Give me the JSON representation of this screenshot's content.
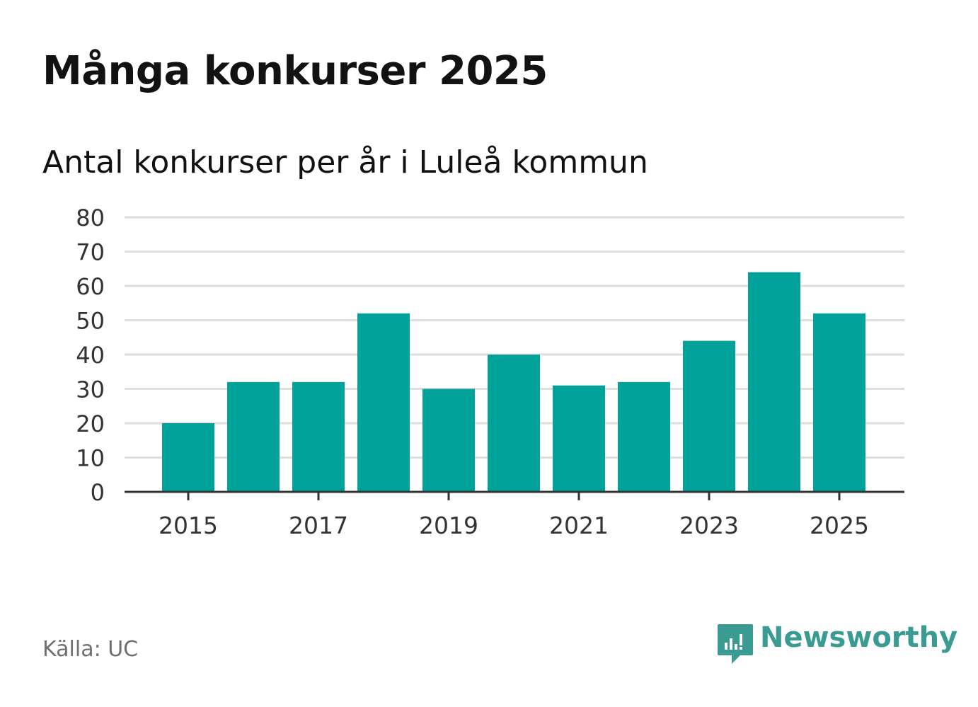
{
  "colors": {
    "bar": "#00a29a",
    "grid": "#dedede",
    "axis": "#333333",
    "brand": "#3a9b92"
  },
  "chart_data": {
    "type": "bar",
    "title": "Många konkurser 2025",
    "subtitle": "Antal konkurser per år i Luleå kommun",
    "categories": [
      "2015",
      "2016",
      "2017",
      "2018",
      "2019",
      "2020",
      "2021",
      "2022",
      "2023",
      "2024",
      "2025"
    ],
    "series": [
      {
        "name": "Antal konkurser",
        "values": [
          20,
          32,
          32,
          52,
          30,
          40,
          31,
          32,
          44,
          64,
          52
        ]
      }
    ],
    "x_tick_labels": [
      "2015",
      "2017",
      "2019",
      "2021",
      "2023",
      "2025"
    ],
    "y_ticks": [
      "0",
      "10",
      "20",
      "30",
      "40",
      "50",
      "60",
      "70",
      "80"
    ],
    "ylim": [
      0,
      80
    ],
    "grid": true,
    "xlabel": "",
    "ylabel": ""
  },
  "footer": {
    "source": "Källa: UC",
    "brand": "Newsworthy"
  },
  "icons": {
    "logo": "newsworthy-logo-icon"
  }
}
